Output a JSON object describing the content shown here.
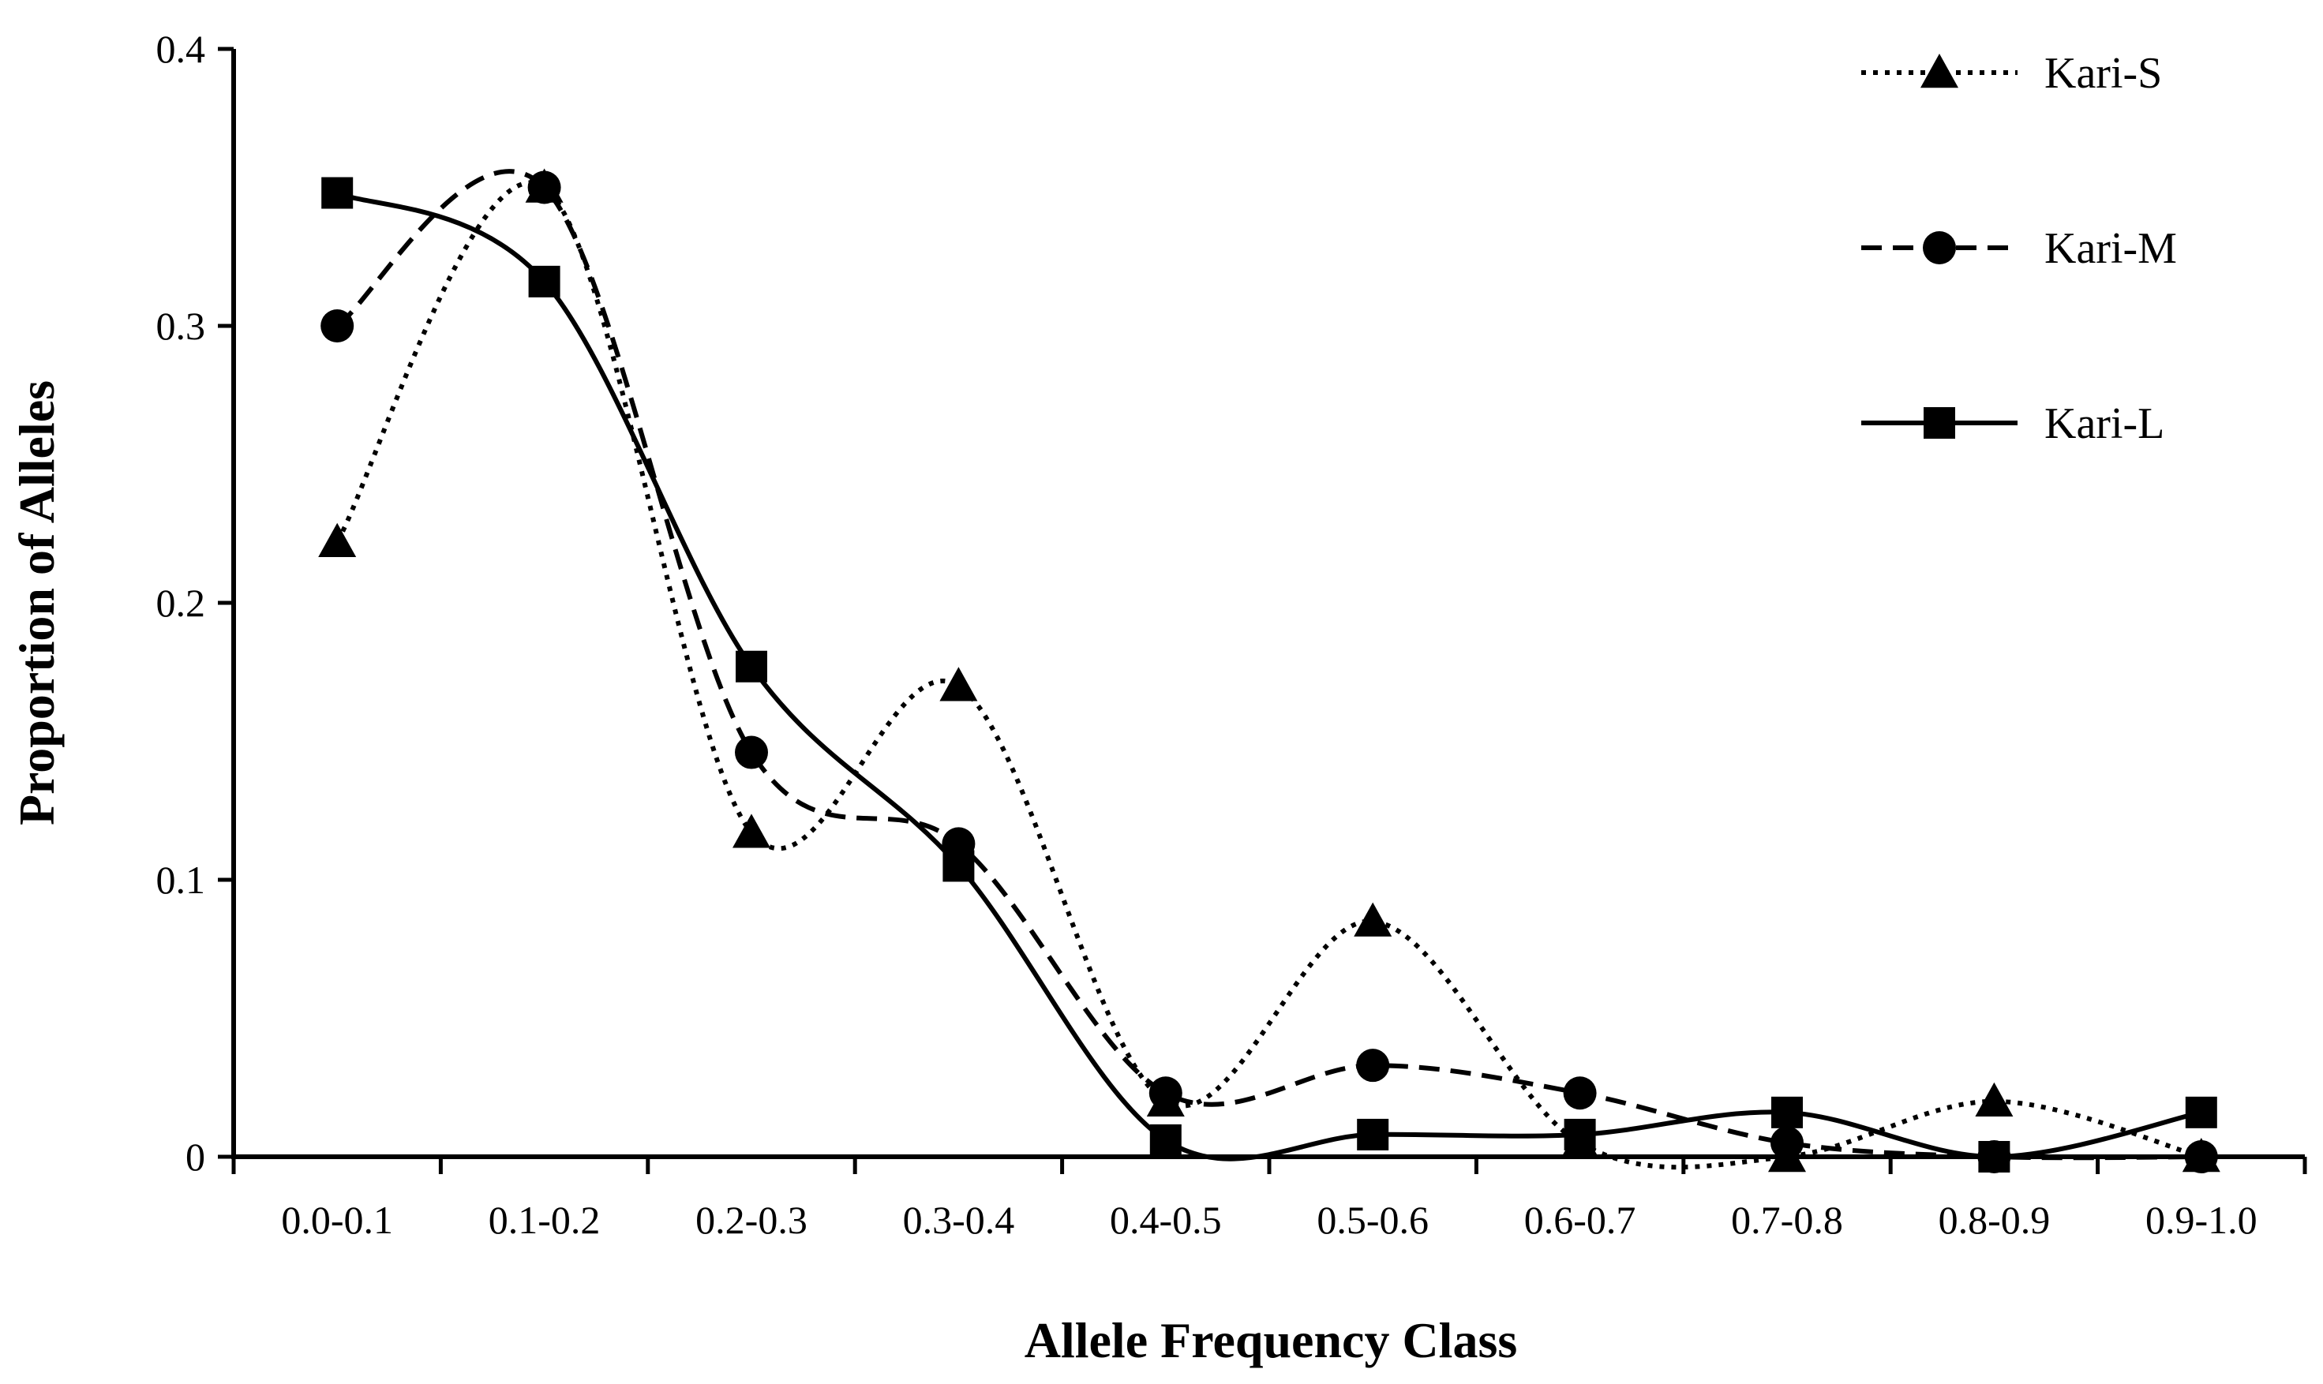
{
  "chart_data": {
    "type": "line",
    "title": "",
    "xlabel": "Allele Frequency Class",
    "ylabel": "Proportion of Alleles",
    "categories": [
      "0.0-0.1",
      "0.1-0.2",
      "0.2-0.3",
      "0.3-0.4",
      "0.4-0.5",
      "0.5-0.6",
      "0.6-0.7",
      "0.7-0.8",
      "0.8-0.9",
      "0.9-1.0"
    ],
    "ylim": [
      0,
      0.4
    ],
    "yticks": [
      "0",
      "0.1",
      "0.2",
      "0.3",
      "0.4"
    ],
    "grid": false,
    "legend_position": "top-right",
    "smooth": true,
    "series": [
      {
        "name": "Kari-S",
        "marker": "triangle",
        "line_style": "dotted",
        "values": [
          0.222,
          0.35,
          0.117,
          0.17,
          0.02,
          0.085,
          0.005,
          0.0,
          0.02,
          0.0
        ]
      },
      {
        "name": "Kari-M",
        "marker": "circle",
        "line_style": "dashed",
        "values": [
          0.3,
          0.35,
          0.146,
          0.113,
          0.023,
          0.033,
          0.023,
          0.005,
          0.0,
          0.0
        ]
      },
      {
        "name": "Kari-L",
        "marker": "square",
        "line_style": "solid",
        "values": [
          0.348,
          0.316,
          0.177,
          0.105,
          0.006,
          0.008,
          0.008,
          0.016,
          0.0,
          0.016
        ]
      }
    ]
  }
}
